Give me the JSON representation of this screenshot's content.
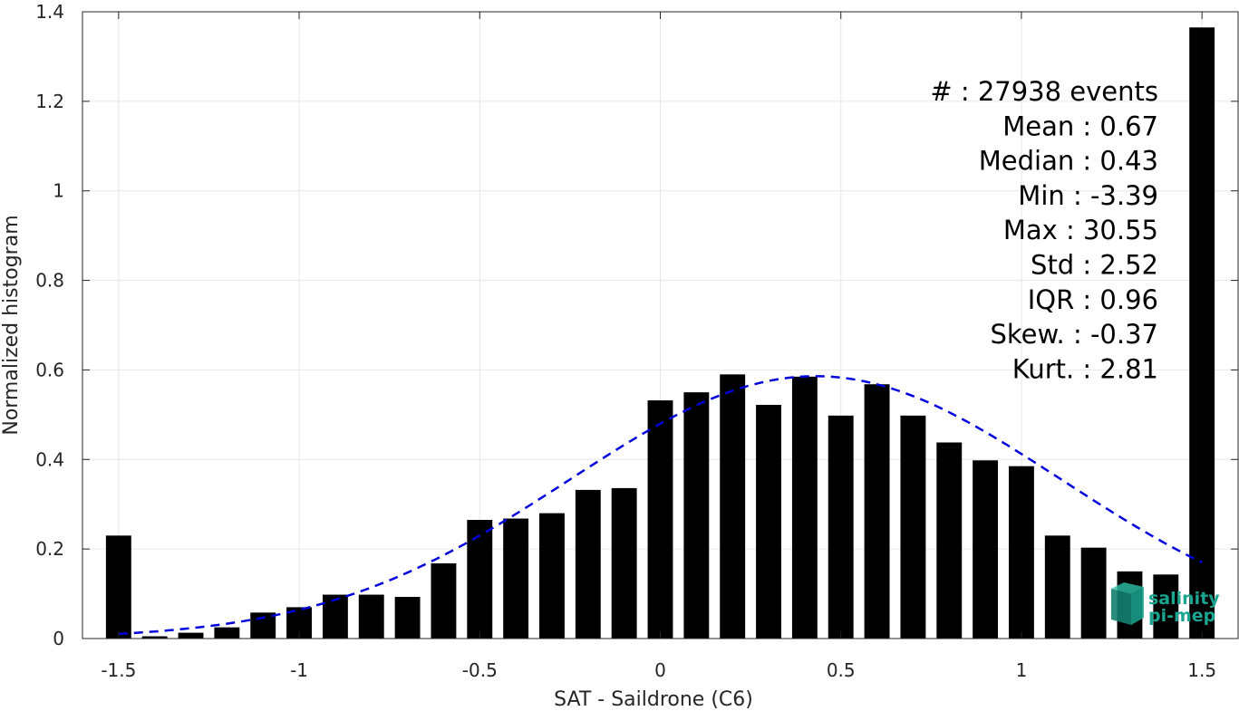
{
  "chart_data": {
    "type": "bar",
    "xlabel": "SAT - Saildrone (C6)",
    "ylabel": "Normalized histogram",
    "xlim": [
      -1.6,
      1.6
    ],
    "ylim": [
      0,
      1.4
    ],
    "grid": true,
    "x_ticks": [
      "-1.5",
      "-1",
      "-0.5",
      "0",
      "0.5",
      "1",
      "1.5"
    ],
    "y_ticks": [
      "0",
      "0.2",
      "0.4",
      "0.6",
      "0.8",
      "1",
      "1.2",
      "1.4"
    ],
    "bar_width": 0.07,
    "bar_color": "#000000",
    "x": [
      -1.5,
      -1.4,
      -1.3,
      -1.2,
      -1.1,
      -1.0,
      -0.9,
      -0.8,
      -0.7,
      -0.6,
      -0.5,
      -0.4,
      -0.3,
      -0.2,
      -0.1,
      0.0,
      0.1,
      0.2,
      0.3,
      0.4,
      0.5,
      0.6,
      0.7,
      0.8,
      0.9,
      1.0,
      1.1,
      1.2,
      1.3,
      1.4,
      1.5
    ],
    "values": [
      0.23,
      0.005,
      0.013,
      0.025,
      0.058,
      0.07,
      0.098,
      0.098,
      0.093,
      0.168,
      0.265,
      0.268,
      0.28,
      0.332,
      0.336,
      0.532,
      0.55,
      0.59,
      0.522,
      0.585,
      0.498,
      0.568,
      0.498,
      0.438,
      0.398,
      0.385,
      0.23,
      0.203,
      0.15,
      0.143,
      1.365
    ],
    "fit_curve": {
      "style": "dashed",
      "color": "#0000dd",
      "mean": 0.43,
      "sigma": 0.68,
      "peak": 0.586,
      "x_range": [
        -1.5,
        1.5
      ]
    },
    "stats": [
      "#  : 27938 events",
      "Mean : 0.67",
      "Median : 0.43",
      "Min : -3.39",
      "Max : 30.55",
      "Std : 2.52",
      "IQR : 0.96",
      "Skew. : -0.37",
      "Kurt. : 2.81"
    ]
  },
  "logo": {
    "line1": "salinity",
    "line2": "pi-mep",
    "color": "#1aa590"
  }
}
